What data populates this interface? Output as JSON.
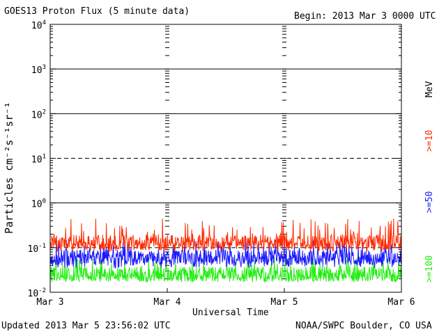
{
  "header": {
    "title": "GOES13 Proton Flux (5 minute data)",
    "begin": "Begin: 2013 Mar 3 0000 UTC"
  },
  "footer": {
    "updated": "Updated 2013 Mar  5 23:56:02 UTC",
    "source": "NOAA/SWPC Boulder, CO USA"
  },
  "chart_data": {
    "type": "line",
    "title": "GOES13 Proton Flux (5 minute data)",
    "xlabel": "Universal Time",
    "ylabel": "Particles cm⁻²s⁻¹sr⁻¹",
    "yscale": "log",
    "ylim": [
      0.01,
      10000
    ],
    "xlim": [
      "2013-03-03 00:00",
      "2013-03-06 00:00"
    ],
    "x_ticks": [
      "Mar 3",
      "Mar 4",
      "Mar 5",
      "Mar 6"
    ],
    "y_ticks": [
      {
        "base": "10",
        "exp": "4"
      },
      {
        "base": "10",
        "exp": "3"
      },
      {
        "base": "10",
        "exp": "2"
      },
      {
        "base": "10",
        "exp": "1"
      },
      {
        "base": "10",
        "exp": "0"
      },
      {
        "base": "10",
        "exp": "-1"
      },
      {
        "base": "10",
        "exp": "-2"
      }
    ],
    "unit_label": "MeV",
    "grid": {
      "solid_at": [
        1000,
        100,
        1
      ],
      "dashed_at": [
        10,
        0.1
      ]
    },
    "series": [
      {
        "name": ">=10",
        "color": "#ff2a00",
        "typical": 0.13,
        "range": [
          0.08,
          0.45
        ]
      },
      {
        "name": ">=50",
        "color": "#1a1aff",
        "typical": 0.06,
        "range": [
          0.035,
          0.15
        ]
      },
      {
        "name": ">=100",
        "color": "#22ee11",
        "typical": 0.025,
        "range": [
          0.017,
          0.06
        ]
      }
    ]
  }
}
